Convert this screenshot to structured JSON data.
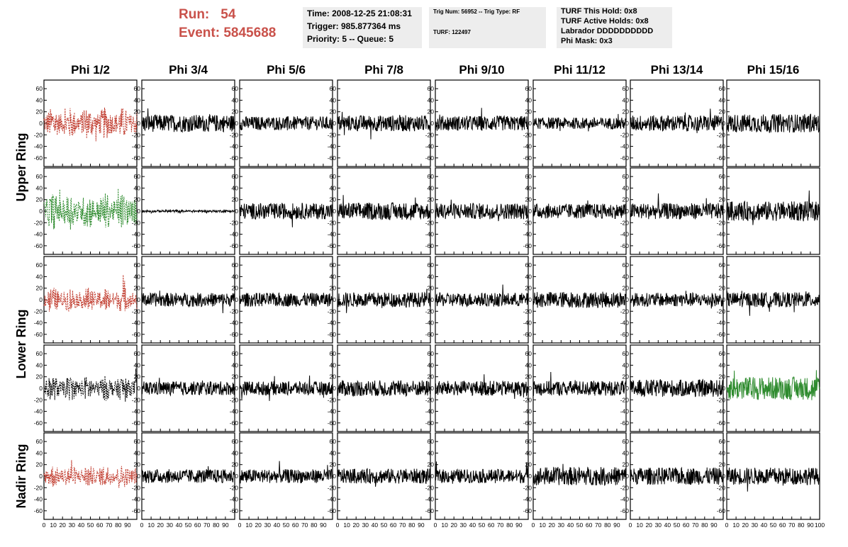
{
  "header": {
    "run_label": "Run:",
    "run_value": "54",
    "event_label": "Event:",
    "event_value": "5845688",
    "time": "Time: 2008-12-25 21:08:31",
    "trigger": "Trigger: 985.877364 ms",
    "priority": "Priority: 5 -- Queue: 5",
    "trig_num": "Trig Num: 56952 -- Trig Type: RF",
    "turf": "TURF: 122497",
    "turf_this_hold": "TURF This Hold: 0x8",
    "turf_active_holds": "TURF Active Holds: 0x8",
    "labrador": "Labrador DDDDDDDDDD",
    "phi_mask": "Phi Mask: 0x3"
  },
  "colors": {
    "header_red": "#c9514a",
    "trace_black": "#000000",
    "trace_red": "#c0392b",
    "trace_green": "#2e8b2e",
    "info_box_bg": "#ededed"
  },
  "chart_data": {
    "type": "line",
    "columns": [
      "Phi 1/2",
      "Phi 3/4",
      "Phi 5/6",
      "Phi 7/8",
      "Phi 9/10",
      "Phi 11/12",
      "Phi 13/14",
      "Phi 15/16"
    ],
    "rows": [
      "Upper Ring",
      "Lower Ring",
      "Nadir Ring"
    ],
    "panel_rows": 5,
    "row_label_spans": [
      [
        0,
        2
      ],
      [
        2,
        4
      ],
      [
        4,
        5
      ]
    ],
    "xlim": [
      0,
      100
    ],
    "ylim": [
      -70,
      70
    ],
    "y_ticks": [
      -60,
      -40,
      -20,
      0,
      20,
      40,
      60
    ],
    "x_tick_labels": [
      "0",
      "10",
      "20",
      "30",
      "40",
      "50",
      "60",
      "70",
      "80",
      "90",
      "100"
    ],
    "panels": [
      [
        {
          "amplitude": 28,
          "color": "#c0392b",
          "dashed": true
        },
        {
          "amplitude": 15,
          "color": "#000000",
          "dashed": false
        },
        {
          "amplitude": 12,
          "color": "#000000",
          "dashed": false
        },
        {
          "amplitude": 14,
          "color": "#000000",
          "dashed": false
        },
        {
          "amplitude": 13,
          "color": "#000000",
          "dashed": false
        },
        {
          "amplitude": 10,
          "color": "#000000",
          "dashed": false
        },
        {
          "amplitude": 14,
          "color": "#000000",
          "dashed": false
        },
        {
          "amplitude": 16,
          "color": "#000000",
          "dashed": false
        }
      ],
      [
        {
          "amplitude": 32,
          "color": "#2e8b2e",
          "dashed": true
        },
        {
          "amplitude": 2,
          "color": "#000000",
          "dashed": false
        },
        {
          "amplitude": 14,
          "color": "#000000",
          "dashed": false
        },
        {
          "amplitude": 15,
          "color": "#000000",
          "dashed": false
        },
        {
          "amplitude": 14,
          "color": "#000000",
          "dashed": false
        },
        {
          "amplitude": 13,
          "color": "#000000",
          "dashed": false
        },
        {
          "amplitude": 14,
          "color": "#000000",
          "dashed": false
        },
        {
          "amplitude": 17,
          "color": "#000000",
          "dashed": false
        }
      ],
      [
        {
          "amplitude": 22,
          "color": "#c0392b",
          "dashed": true
        },
        {
          "amplitude": 12,
          "color": "#000000",
          "dashed": false
        },
        {
          "amplitude": 12,
          "color": "#000000",
          "dashed": false
        },
        {
          "amplitude": 13,
          "color": "#000000",
          "dashed": false
        },
        {
          "amplitude": 12,
          "color": "#000000",
          "dashed": false
        },
        {
          "amplitude": 14,
          "color": "#000000",
          "dashed": false
        },
        {
          "amplitude": 12,
          "color": "#000000",
          "dashed": false
        },
        {
          "amplitude": 13,
          "color": "#000000",
          "dashed": false
        }
      ],
      [
        {
          "amplitude": 22,
          "color": "#000000",
          "dashed": true
        },
        {
          "amplitude": 12,
          "color": "#000000",
          "dashed": false
        },
        {
          "amplitude": 12,
          "color": "#000000",
          "dashed": false
        },
        {
          "amplitude": 14,
          "color": "#000000",
          "dashed": false
        },
        {
          "amplitude": 13,
          "color": "#000000",
          "dashed": false
        },
        {
          "amplitude": 13,
          "color": "#000000",
          "dashed": false
        },
        {
          "amplitude": 15,
          "color": "#000000",
          "dashed": false
        },
        {
          "amplitude": 20,
          "color": "#2e8b2e",
          "dashed": false
        }
      ],
      [
        {
          "amplitude": 20,
          "color": "#c0392b",
          "dashed": true
        },
        {
          "amplitude": 12,
          "color": "#000000",
          "dashed": false
        },
        {
          "amplitude": 12,
          "color": "#000000",
          "dashed": false
        },
        {
          "amplitude": 13,
          "color": "#000000",
          "dashed": false
        },
        {
          "amplitude": 12,
          "color": "#000000",
          "dashed": false
        },
        {
          "amplitude": 16,
          "color": "#000000",
          "dashed": false
        },
        {
          "amplitude": 15,
          "color": "#000000",
          "dashed": false
        },
        {
          "amplitude": 15,
          "color": "#000000",
          "dashed": false
        }
      ]
    ]
  }
}
